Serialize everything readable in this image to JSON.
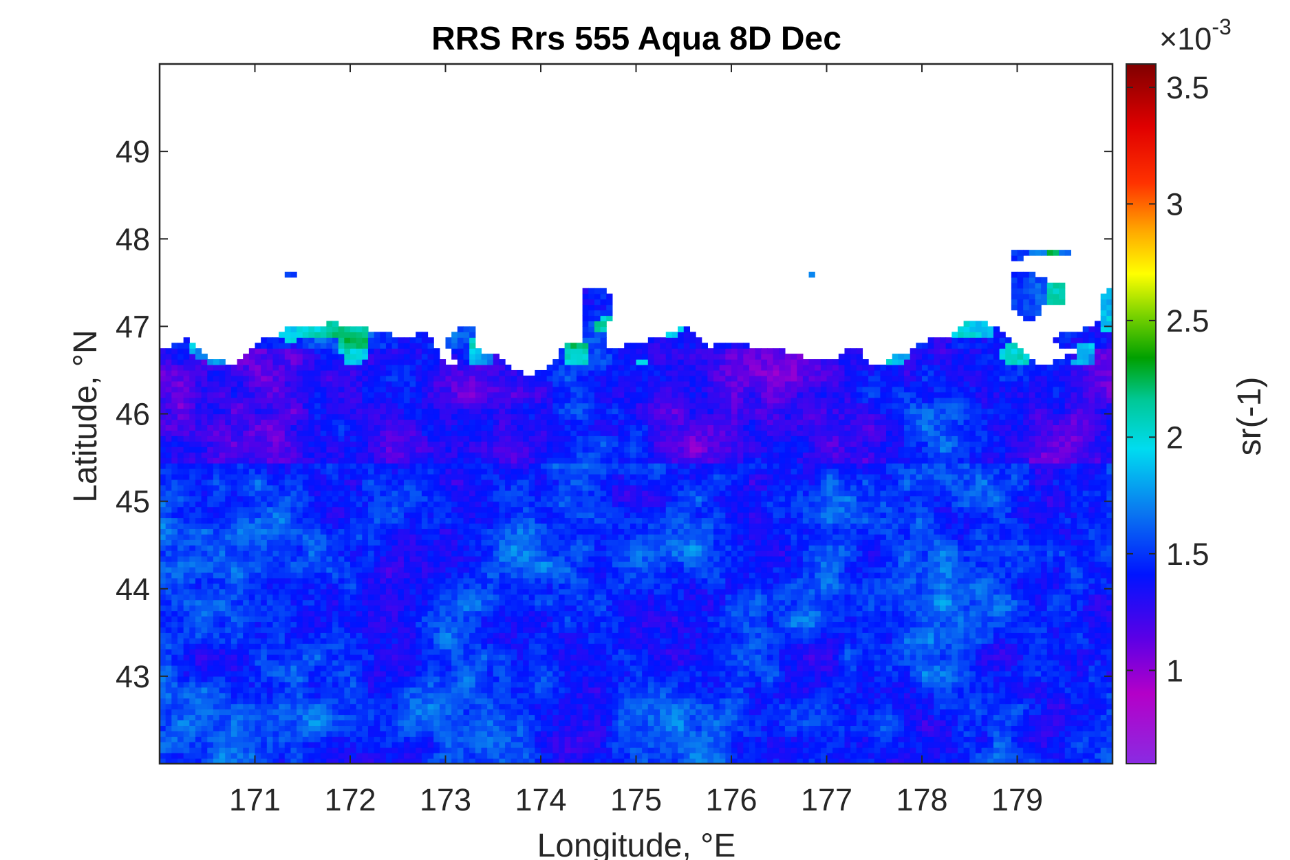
{
  "chart_data": {
    "type": "heatmap",
    "title": "RRS Rrs 555 Aqua 8D Dec",
    "xlabel": "Longitude, °E",
    "ylabel": "Latitude, °N",
    "xlim": [
      170.0,
      180.0
    ],
    "ylim": [
      42.0,
      50.0
    ],
    "xticks": [
      171,
      172,
      173,
      174,
      175,
      176,
      177,
      178,
      179
    ],
    "yticks": [
      43,
      44,
      45,
      46,
      47,
      48,
      49
    ],
    "grid": false,
    "colorbar": {
      "label": "sr(-1)",
      "exponent_label": "×10",
      "exponent": "-3",
      "range": [
        0.6,
        3.6
      ],
      "ticks": [
        1,
        1.5,
        2,
        2.5,
        3,
        3.5
      ],
      "colormap": "rainbow (violet → blue → cyan → green → yellow → orange → red → dark red)"
    },
    "field_summary": {
      "missing_data_region": "no data (white) north of about 46.5–47.5°N; scattered patches up to ~47.8°N near 179°E",
      "typical_values": "1.3–1.8 ×10^-3 across most of the domain",
      "low_band": "≈1.0–1.2 ×10^-3 (purple) along 45.5–46.6°N",
      "high_patches": "≈2.0–2.3 ×10^-3 (cyan/green) small patches near the data edge around 47°N"
    }
  },
  "colors": {
    "axes": "#262626",
    "title": "#000000",
    "colormap_stops": [
      "#8a2be2",
      "#b400c8",
      "#5a00e6",
      "#0014ff",
      "#0a78f0",
      "#00dcf0",
      "#00c896",
      "#00a000",
      "#78d200",
      "#ffff00",
      "#ffaa00",
      "#ff3200",
      "#e00000",
      "#800000"
    ]
  }
}
